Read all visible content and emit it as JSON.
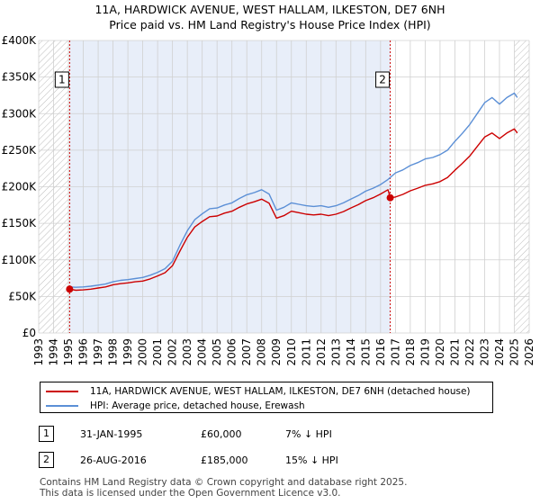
{
  "title": {
    "line1": "11A, HARDWICK AVENUE, WEST HALLAM, ILKESTON, DE7 6NH",
    "line2": "Price paid vs. HM Land Registry's House Price Index (HPI)"
  },
  "colors": {
    "price_line": "#cc0000",
    "hpi_line": "#5b8fd6",
    "shade": "#e8eef9",
    "grid": "#d0d0d0",
    "hatch": "#bbbbbb"
  },
  "chart_data": {
    "type": "line",
    "title": "Price paid vs. HM Land Registry's House Price Index (HPI)",
    "xlabel": "",
    "ylabel": "",
    "xlim": [
      1993,
      2026
    ],
    "ylim": [
      0,
      400000
    ],
    "grid": true,
    "x_ticks": [
      "1993",
      "1994",
      "1995",
      "1996",
      "1997",
      "1998",
      "1999",
      "2000",
      "2001",
      "2002",
      "2003",
      "2004",
      "2005",
      "2006",
      "2007",
      "2008",
      "2009",
      "2010",
      "2011",
      "2012",
      "2013",
      "2014",
      "2015",
      "2016",
      "2017",
      "2018",
      "2019",
      "2020",
      "2021",
      "2022",
      "2023",
      "2024",
      "2025",
      "2026"
    ],
    "y_ticks": [
      {
        "value": 0,
        "label": "£0"
      },
      {
        "value": 50000,
        "label": "£50K"
      },
      {
        "value": 100000,
        "label": "£100K"
      },
      {
        "value": 150000,
        "label": "£150K"
      },
      {
        "value": 200000,
        "label": "£200K"
      },
      {
        "value": 250000,
        "label": "£250K"
      },
      {
        "value": 300000,
        "label": "£300K"
      },
      {
        "value": 350000,
        "label": "£350K"
      },
      {
        "value": 400000,
        "label": "£400K"
      }
    ],
    "shaded_range": [
      1995.08,
      2016.65
    ],
    "hatched_before": 1995.0,
    "hatched_after": 2025.0,
    "series": [
      {
        "name": "HPI: Average price, detached house, Erewash",
        "color": "#5b8fd6",
        "x": [
          1995.0,
          1995.5,
          1996.0,
          1996.5,
          1997.0,
          1997.5,
          1998.0,
          1998.5,
          1999.0,
          1999.5,
          2000.0,
          2000.5,
          2001.0,
          2001.5,
          2002.0,
          2002.5,
          2003.0,
          2003.5,
          2004.0,
          2004.5,
          2005.0,
          2005.5,
          2006.0,
          2006.5,
          2007.0,
          2007.5,
          2008.0,
          2008.5,
          2009.0,
          2009.5,
          2010.0,
          2010.5,
          2011.0,
          2011.5,
          2012.0,
          2012.5,
          2013.0,
          2013.5,
          2014.0,
          2014.5,
          2015.0,
          2015.5,
          2016.0,
          2016.5,
          2017.0,
          2017.5,
          2018.0,
          2018.5,
          2019.0,
          2019.5,
          2020.0,
          2020.5,
          2021.0,
          2021.5,
          2022.0,
          2022.5,
          2023.0,
          2023.5,
          2024.0,
          2024.5,
          2025.0,
          2025.2
        ],
        "y": [
          63000,
          62500,
          63000,
          64000,
          65500,
          67000,
          70000,
          72000,
          73000,
          74500,
          76000,
          79000,
          83000,
          88000,
          98000,
          120000,
          140000,
          155000,
          163000,
          170000,
          171000,
          175000,
          178000,
          184000,
          189000,
          192000,
          196000,
          190000,
          168000,
          172000,
          178000,
          176000,
          174000,
          173000,
          174000,
          172000,
          174000,
          178000,
          183000,
          188000,
          194000,
          198000,
          203000,
          210000,
          219000,
          223000,
          229000,
          233000,
          238000,
          240000,
          244000,
          250000,
          262000,
          273000,
          285000,
          300000,
          315000,
          322000,
          313000,
          322000,
          328000,
          322000
        ]
      },
      {
        "name": "11A, HARDWICK AVENUE, WEST HALLAM, ILKESTON, DE7 6NH (detached house)",
        "color": "#cc0000",
        "x": [
          1995.08,
          1995.5,
          1996.0,
          1996.5,
          1997.0,
          1997.5,
          1998.0,
          1998.5,
          1999.0,
          1999.5,
          2000.0,
          2000.5,
          2001.0,
          2001.5,
          2002.0,
          2002.5,
          2003.0,
          2003.5,
          2004.0,
          2004.5,
          2005.0,
          2005.5,
          2006.0,
          2006.5,
          2007.0,
          2007.5,
          2008.0,
          2008.5,
          2009.0,
          2009.5,
          2010.0,
          2010.5,
          2011.0,
          2011.5,
          2012.0,
          2012.5,
          2013.0,
          2013.5,
          2014.0,
          2014.5,
          2015.0,
          2015.5,
          2016.0,
          2016.5,
          2016.65,
          2017.0,
          2017.5,
          2018.0,
          2018.5,
          2019.0,
          2019.5,
          2020.0,
          2020.5,
          2021.0,
          2021.5,
          2022.0,
          2022.5,
          2023.0,
          2023.5,
          2024.0,
          2024.5,
          2025.0,
          2025.2
        ],
        "y": [
          60000,
          58500,
          59000,
          60000,
          61500,
          63000,
          66000,
          67500,
          68500,
          70000,
          71000,
          74000,
          78000,
          82500,
          92000,
          112000,
          131000,
          145000,
          152500,
          159000,
          160000,
          164000,
          166500,
          172000,
          176500,
          179500,
          183000,
          177500,
          157000,
          160500,
          166500,
          164500,
          162500,
          161500,
          162500,
          160500,
          162500,
          166000,
          171000,
          175500,
          181000,
          185000,
          190000,
          196000,
          185000,
          186000,
          189500,
          194500,
          198000,
          202000,
          204000,
          207000,
          212500,
          222500,
          232000,
          242000,
          255000,
          268000,
          273500,
          266000,
          273500,
          279000,
          273500
        ]
      }
    ],
    "sales": [
      {
        "id": "1",
        "x": 1995.08,
        "y": 60000,
        "date": "31-JAN-1995",
        "price": "£60,000",
        "hpi_diff": "7% ↓ HPI"
      },
      {
        "id": "2",
        "x": 2016.65,
        "y": 185000,
        "date": "26-AUG-2016",
        "price": "£185,000",
        "hpi_diff": "15% ↓ HPI"
      }
    ]
  },
  "legend": {
    "property_label": "11A, HARDWICK AVENUE, WEST HALLAM, ILKESTON, DE7 6NH (detached house)",
    "hpi_label": "HPI: Average price, detached house, Erewash"
  },
  "footer": {
    "line1": "Contains HM Land Registry data © Crown copyright and database right 2025.",
    "line2": "This data is licensed under the Open Government Licence v3.0."
  }
}
